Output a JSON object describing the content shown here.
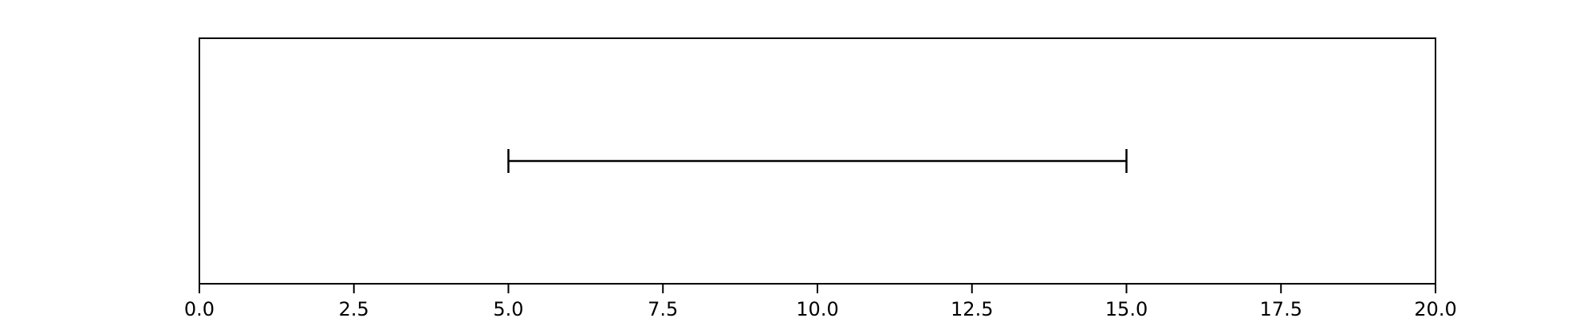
{
  "chart_data": {
    "type": "errorbar",
    "title": "",
    "xlabel": "",
    "ylabel": "",
    "xlim": [
      0.0,
      20.0
    ],
    "x_ticks": [
      0.0,
      2.5,
      5.0,
      7.5,
      10.0,
      12.5,
      15.0,
      17.5,
      20.0
    ],
    "x_tick_labels": [
      "0.0",
      "2.5",
      "5.0",
      "7.5",
      "10.0",
      "12.5",
      "15.0",
      "17.5",
      "20.0"
    ],
    "y_ticks_visible": false,
    "grid": false,
    "intervals": [
      {
        "low": 5.0,
        "high": 15.0
      }
    ],
    "colors": {
      "line": "#000000",
      "axes": "#000000",
      "background": "#ffffff"
    }
  }
}
